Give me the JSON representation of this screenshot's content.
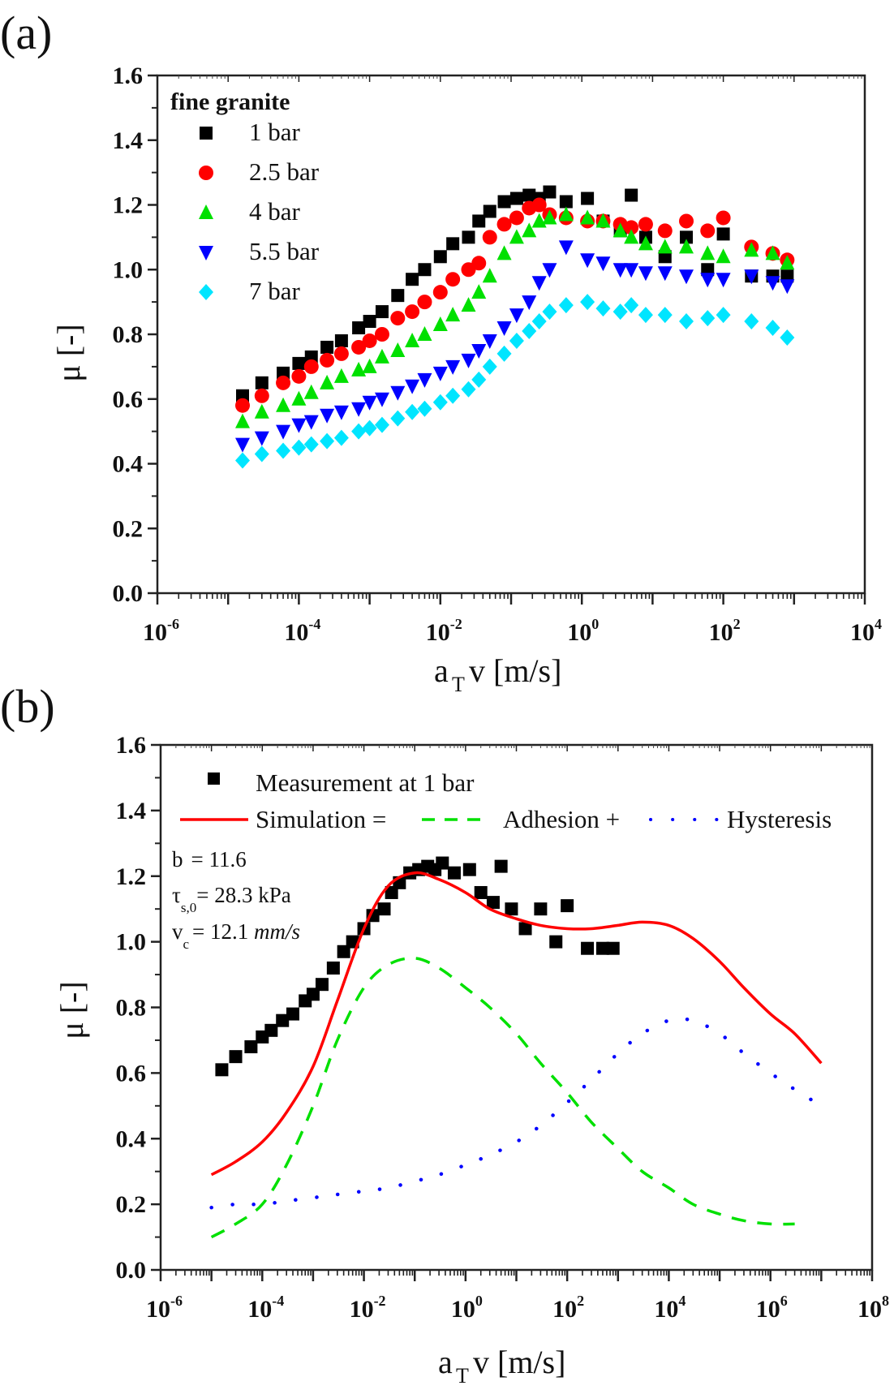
{
  "figure": {
    "panels": [
      "(a)",
      "(b)"
    ]
  },
  "chart_data": [
    {
      "id": "a",
      "type": "scatter",
      "panel_label": "(a)",
      "title": "",
      "xlabel": "a_T v [m/s]",
      "xlabel_parts": {
        "main": "a",
        "sub": "T",
        "rest": "v [m/s]"
      },
      "ylabel": "μ [-]",
      "xscale": "log",
      "xlim": [
        1e-06,
        10000.0
      ],
      "ylim": [
        0.0,
        1.6
      ],
      "xticks": [
        {
          "base": "10",
          "exp": "-6",
          "value": 1e-06
        },
        {
          "base": "10",
          "exp": "-4",
          "value": 0.0001
        },
        {
          "base": "10",
          "exp": "-2",
          "value": 0.01
        },
        {
          "base": "10",
          "exp": "0",
          "value": 1
        },
        {
          "base": "10",
          "exp": "2",
          "value": 100
        },
        {
          "base": "10",
          "exp": "4",
          "value": 10000
        }
      ],
      "yticks": [
        "0.0",
        "0.2",
        "0.4",
        "0.6",
        "0.8",
        "1.0",
        "1.2",
        "1.4",
        "1.6"
      ],
      "grid": false,
      "legend": {
        "title": "fine granite",
        "placement": "top-left",
        "entries": [
          {
            "label": "1 bar",
            "marker": "square",
            "color": "#000000"
          },
          {
            "label": "2.5 bar",
            "marker": "circle",
            "color": "#ff0000"
          },
          {
            "label": "4 bar",
            "marker": "triangle-up",
            "color": "#00e000"
          },
          {
            "label": "5.5 bar",
            "marker": "triangle-down",
            "color": "#0000ff"
          },
          {
            "label": "7 bar",
            "marker": "diamond",
            "color": "#00e5ff"
          }
        ]
      },
      "series": [
        {
          "name": "1 bar",
          "marker": "square",
          "color": "#000000",
          "x": [
            1.6e-05,
            3e-05,
            6e-05,
            0.0001,
            0.00015,
            0.00025,
            0.0004,
            0.0007,
            0.001,
            0.0015,
            0.0025,
            0.004,
            0.006,
            0.01,
            0.015,
            0.025,
            0.035,
            0.05,
            0.08,
            0.12,
            0.18,
            0.25,
            0.35,
            0.6,
            1.2,
            2,
            3.5,
            5,
            8,
            15,
            30,
            60,
            100,
            250,
            500,
            800
          ],
          "y": [
            0.61,
            0.65,
            0.68,
            0.71,
            0.73,
            0.76,
            0.78,
            0.82,
            0.84,
            0.87,
            0.92,
            0.97,
            1.0,
            1.04,
            1.08,
            1.1,
            1.15,
            1.18,
            1.21,
            1.22,
            1.23,
            1.22,
            1.24,
            1.21,
            1.22,
            1.15,
            1.12,
            1.23,
            1.1,
            1.04,
            1.1,
            1.0,
            1.11,
            0.98,
            0.98,
            0.98
          ]
        },
        {
          "name": "2.5 bar",
          "marker": "circle",
          "color": "#ff0000",
          "x": [
            1.6e-05,
            3e-05,
            6e-05,
            0.0001,
            0.00015,
            0.00025,
            0.0004,
            0.0007,
            0.001,
            0.0015,
            0.0025,
            0.004,
            0.006,
            0.01,
            0.015,
            0.025,
            0.035,
            0.05,
            0.08,
            0.12,
            0.18,
            0.25,
            0.35,
            0.6,
            1.2,
            2,
            3.5,
            5,
            8,
            15,
            30,
            60,
            100,
            250,
            500,
            800
          ],
          "y": [
            0.58,
            0.61,
            0.65,
            0.67,
            0.7,
            0.72,
            0.74,
            0.76,
            0.78,
            0.8,
            0.85,
            0.87,
            0.9,
            0.93,
            0.97,
            1.0,
            1.02,
            1.1,
            1.14,
            1.16,
            1.19,
            1.2,
            1.17,
            1.16,
            1.15,
            1.15,
            1.14,
            1.13,
            1.14,
            1.12,
            1.15,
            1.12,
            1.16,
            1.07,
            1.05,
            1.03
          ]
        },
        {
          "name": "4 bar",
          "marker": "triangle-up",
          "color": "#00e000",
          "x": [
            1.6e-05,
            3e-05,
            6e-05,
            0.0001,
            0.00015,
            0.00025,
            0.0004,
            0.0007,
            0.001,
            0.0015,
            0.0025,
            0.004,
            0.006,
            0.01,
            0.015,
            0.025,
            0.035,
            0.05,
            0.08,
            0.12,
            0.18,
            0.25,
            0.35,
            0.6,
            1.2,
            2,
            3.5,
            5,
            8,
            15,
            30,
            60,
            100,
            250,
            500,
            800
          ],
          "y": [
            0.53,
            0.56,
            0.58,
            0.6,
            0.62,
            0.65,
            0.67,
            0.69,
            0.7,
            0.73,
            0.75,
            0.78,
            0.8,
            0.83,
            0.86,
            0.89,
            0.93,
            0.98,
            1.05,
            1.1,
            1.12,
            1.15,
            1.16,
            1.17,
            1.16,
            1.15,
            1.12,
            1.1,
            1.08,
            1.07,
            1.07,
            1.05,
            1.04,
            1.06,
            1.05,
            1.02
          ]
        },
        {
          "name": "5.5 bar",
          "marker": "triangle-down",
          "color": "#0000ff",
          "x": [
            1.6e-05,
            3e-05,
            6e-05,
            0.0001,
            0.00015,
            0.00025,
            0.0004,
            0.0007,
            0.001,
            0.0015,
            0.0025,
            0.004,
            0.006,
            0.01,
            0.015,
            0.025,
            0.035,
            0.05,
            0.08,
            0.12,
            0.18,
            0.25,
            0.35,
            0.6,
            1.2,
            2,
            3.5,
            5,
            8,
            15,
            30,
            60,
            100,
            250,
            500,
            800
          ],
          "y": [
            0.46,
            0.48,
            0.5,
            0.52,
            0.53,
            0.55,
            0.56,
            0.57,
            0.59,
            0.6,
            0.62,
            0.64,
            0.66,
            0.68,
            0.7,
            0.72,
            0.75,
            0.78,
            0.82,
            0.86,
            0.9,
            0.96,
            1.0,
            1.07,
            1.03,
            1.02,
            1.0,
            1.0,
            0.99,
            0.99,
            0.98,
            0.97,
            0.97,
            0.98,
            0.96,
            0.95
          ]
        },
        {
          "name": "7 bar",
          "marker": "diamond",
          "color": "#00e5ff",
          "x": [
            1.6e-05,
            3e-05,
            6e-05,
            0.0001,
            0.00015,
            0.00025,
            0.0004,
            0.0007,
            0.001,
            0.0015,
            0.0025,
            0.004,
            0.006,
            0.01,
            0.015,
            0.025,
            0.035,
            0.05,
            0.08,
            0.12,
            0.18,
            0.25,
            0.35,
            0.6,
            1.2,
            2,
            3.5,
            5,
            8,
            15,
            30,
            60,
            100,
            250,
            500,
            800
          ],
          "y": [
            0.41,
            0.43,
            0.44,
            0.45,
            0.46,
            0.47,
            0.48,
            0.5,
            0.51,
            0.52,
            0.54,
            0.56,
            0.57,
            0.59,
            0.61,
            0.63,
            0.66,
            0.7,
            0.74,
            0.78,
            0.81,
            0.84,
            0.87,
            0.89,
            0.9,
            0.88,
            0.87,
            0.89,
            0.86,
            0.86,
            0.84,
            0.85,
            0.86,
            0.84,
            0.82,
            0.79
          ]
        }
      ]
    },
    {
      "id": "b",
      "type": "line",
      "panel_label": "(b)",
      "title": "",
      "xlabel": "a_T v [m/s]",
      "xlabel_parts": {
        "main": "a",
        "sub": "T",
        "rest": "v [m/s]"
      },
      "ylabel": "μ [-]",
      "xscale": "log",
      "xlim": [
        1e-06,
        100000000.0
      ],
      "ylim": [
        0.0,
        1.6
      ],
      "xticks": [
        {
          "base": "10",
          "exp": "-6",
          "value": 1e-06
        },
        {
          "base": "10",
          "exp": "-4",
          "value": 0.0001
        },
        {
          "base": "10",
          "exp": "-2",
          "value": 0.01
        },
        {
          "base": "10",
          "exp": "0",
          "value": 1
        },
        {
          "base": "10",
          "exp": "2",
          "value": 100
        },
        {
          "base": "10",
          "exp": "4",
          "value": 10000
        },
        {
          "base": "10",
          "exp": "6",
          "value": 1000000.0
        },
        {
          "base": "10",
          "exp": "8",
          "value": 100000000.0
        }
      ],
      "yticks": [
        "0.0",
        "0.2",
        "0.4",
        "0.6",
        "0.8",
        "1.0",
        "1.2",
        "1.4",
        "1.6"
      ],
      "grid": false,
      "legend": {
        "placement": "top-left",
        "entries": [
          {
            "label": "Measurement at 1 bar",
            "style": "square-marker",
            "color": "#000000"
          },
          {
            "label": "Simulation =",
            "style": "solid",
            "color": "#ff0000"
          },
          {
            "label": "Adhesion +",
            "style": "dashed",
            "color": "#00e000"
          },
          {
            "label": "Hysteresis",
            "style": "dotted",
            "color": "#0000ff"
          }
        ]
      },
      "parameters": [
        {
          "symbol": "b",
          "sub": "",
          "value": "= 11.6",
          "unit": ""
        },
        {
          "symbol": "τ",
          "sub": "s,0",
          "value": "= 28.3 kPa",
          "unit": ""
        },
        {
          "symbol": "v",
          "sub": "c",
          "value": "= 12.1 ",
          "unit": "mm/s"
        }
      ],
      "series": [
        {
          "name": "Measurement at 1 bar",
          "kind": "scatter",
          "marker": "square",
          "color": "#000000",
          "x": [
            1.6e-05,
            3e-05,
            6e-05,
            0.0001,
            0.00015,
            0.00025,
            0.0004,
            0.0007,
            0.001,
            0.0015,
            0.0025,
            0.004,
            0.006,
            0.01,
            0.015,
            0.025,
            0.035,
            0.05,
            0.08,
            0.12,
            0.18,
            0.25,
            0.35,
            0.6,
            1.2,
            2,
            3.5,
            5,
            8,
            15,
            30,
            60,
            100,
            250,
            500,
            800
          ],
          "y": [
            0.61,
            0.65,
            0.68,
            0.71,
            0.73,
            0.76,
            0.78,
            0.82,
            0.84,
            0.87,
            0.92,
            0.97,
            1.0,
            1.04,
            1.08,
            1.1,
            1.15,
            1.18,
            1.21,
            1.22,
            1.23,
            1.22,
            1.24,
            1.21,
            1.22,
            1.15,
            1.12,
            1.23,
            1.1,
            1.04,
            1.1,
            1.0,
            1.11,
            0.98,
            0.98,
            0.98
          ]
        },
        {
          "name": "Simulation",
          "kind": "line",
          "style": "solid",
          "color": "#ff0000",
          "x": [
            1e-05,
            3e-05,
            0.0001,
            0.0003,
            0.001,
            0.003,
            0.01,
            0.03,
            0.1,
            0.3,
            1,
            3,
            10,
            30,
            100,
            300,
            1000.0,
            3000.0,
            10000.0,
            30000.0,
            100000.0,
            300000.0,
            1000000.0,
            3000000.0,
            10000000.0
          ],
          "y": [
            0.29,
            0.33,
            0.39,
            0.48,
            0.62,
            0.82,
            1.04,
            1.17,
            1.21,
            1.19,
            1.15,
            1.1,
            1.07,
            1.05,
            1.04,
            1.04,
            1.05,
            1.06,
            1.05,
            1.01,
            0.94,
            0.86,
            0.78,
            0.72,
            0.63
          ]
        },
        {
          "name": "Adhesion",
          "kind": "line",
          "style": "dashed",
          "color": "#00e000",
          "x": [
            1e-05,
            3e-05,
            0.0001,
            0.0003,
            0.001,
            0.003,
            0.01,
            0.03,
            0.1,
            0.3,
            1,
            3,
            10,
            30,
            100,
            300,
            1000.0,
            3000.0,
            10000.0,
            30000.0,
            100000.0,
            300000.0,
            1000000.0,
            3000000.0
          ],
          "y": [
            0.1,
            0.14,
            0.2,
            0.32,
            0.5,
            0.7,
            0.86,
            0.93,
            0.95,
            0.92,
            0.86,
            0.8,
            0.72,
            0.63,
            0.54,
            0.45,
            0.37,
            0.3,
            0.25,
            0.2,
            0.17,
            0.15,
            0.14,
            0.14
          ]
        },
        {
          "name": "Hysteresis",
          "kind": "line",
          "style": "dotted",
          "color": "#0000ff",
          "x": [
            1e-05,
            3e-05,
            0.0001,
            0.0003,
            0.001,
            0.003,
            0.01,
            0.03,
            0.1,
            0.3,
            1,
            3,
            10,
            30,
            100,
            300,
            1000.0,
            3000.0,
            10000.0,
            30000.0,
            100000.0,
            300000.0,
            1000000.0,
            3000000.0,
            10000000.0
          ],
          "y": [
            0.19,
            0.2,
            0.2,
            0.21,
            0.22,
            0.23,
            0.24,
            0.25,
            0.27,
            0.29,
            0.32,
            0.35,
            0.39,
            0.44,
            0.51,
            0.58,
            0.66,
            0.72,
            0.76,
            0.76,
            0.72,
            0.66,
            0.6,
            0.55,
            0.5
          ]
        }
      ]
    }
  ]
}
